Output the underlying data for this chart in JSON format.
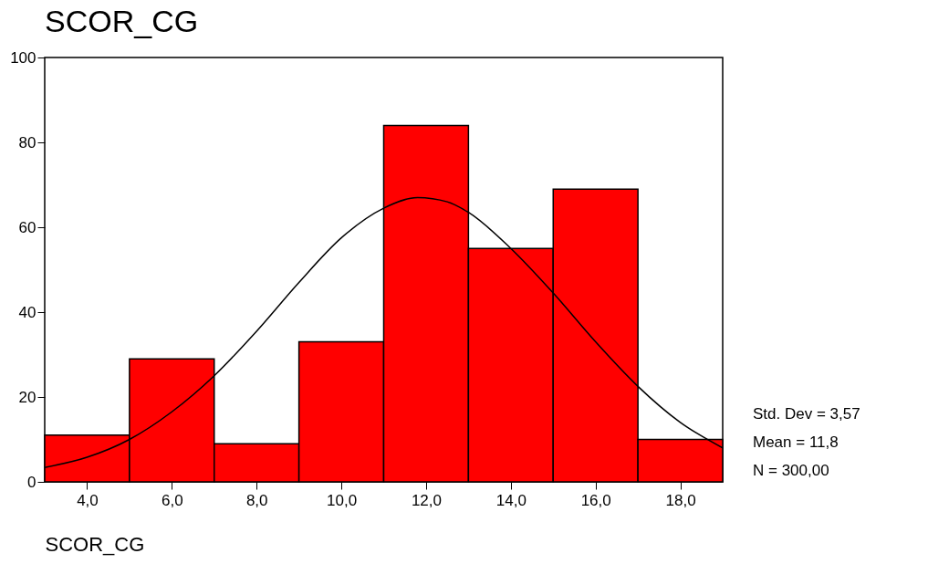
{
  "chart_data": {
    "type": "histogram",
    "title": "SCOR_CG",
    "xlabel": "SCOR_CG",
    "bins": [
      3,
      5,
      7,
      9,
      11,
      13,
      15,
      17,
      19
    ],
    "values": [
      11,
      29,
      9,
      33,
      84,
      55,
      69,
      10
    ],
    "color": "#ff0000",
    "series": [
      {
        "type": "line",
        "color": "#000000",
        "x": [
          3,
          4,
          5,
          6,
          7,
          8,
          9,
          10,
          11,
          11.8,
          12.5,
          13,
          14,
          15,
          16,
          17,
          18,
          19
        ],
        "values": [
          3.4,
          5.8,
          10,
          16.5,
          25,
          35.5,
          47,
          57.5,
          64.5,
          67,
          66,
          63.5,
          55,
          44.5,
          33,
          22.5,
          14,
          8
        ]
      }
    ],
    "xlim": [
      3,
      19
    ],
    "xticks": [
      {
        "value": 4,
        "label": "4,0"
      },
      {
        "value": 6,
        "label": "6,0"
      },
      {
        "value": 8,
        "label": "8,0"
      },
      {
        "value": 10,
        "label": "10,0"
      },
      {
        "value": 12,
        "label": "12,0"
      },
      {
        "value": 14,
        "label": "14,0"
      },
      {
        "value": 16,
        "label": "16,0"
      },
      {
        "value": 18,
        "label": "18,0"
      }
    ],
    "ylim": [
      0,
      100
    ],
    "yticks": [
      0,
      20,
      40,
      60,
      80,
      100
    ],
    "grid": false,
    "annotations": [
      "Std. Dev = 3,57",
      "Mean = 11,8",
      "N = 300,00"
    ]
  }
}
